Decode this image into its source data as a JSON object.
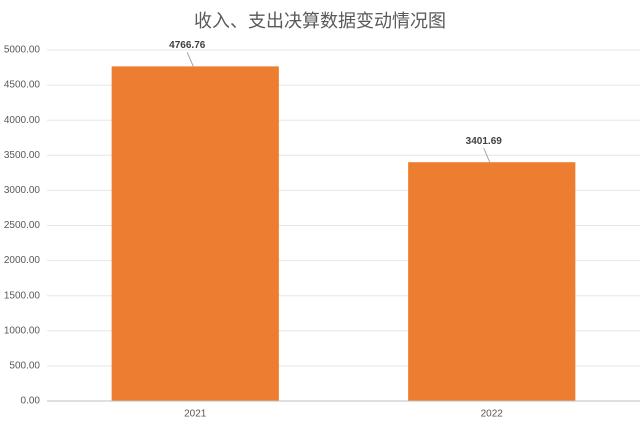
{
  "chart_data": {
    "type": "bar",
    "title": "收入、支出决算数据变动情况图",
    "categories": [
      "2021",
      "2022"
    ],
    "values": [
      4766.76,
      3401.69
    ],
    "color": "#ed7d31",
    "ylim": [
      0,
      5000
    ],
    "yticks": [
      {
        "value": 0,
        "label": "0.00"
      },
      {
        "value": 500,
        "label": "500.00"
      },
      {
        "value": 1000,
        "label": "1000.00"
      },
      {
        "value": 1500,
        "label": "1500.00"
      },
      {
        "value": 2000,
        "label": "2000.00"
      },
      {
        "value": 2500,
        "label": "2500.00"
      },
      {
        "value": 3000,
        "label": "3000.00"
      },
      {
        "value": 3500,
        "label": "3500.00"
      },
      {
        "value": 4000,
        "label": "4000.00"
      },
      {
        "value": 4500,
        "label": "4500.00"
      },
      {
        "value": 5000,
        "label": "5000.00"
      }
    ],
    "grid": true
  }
}
